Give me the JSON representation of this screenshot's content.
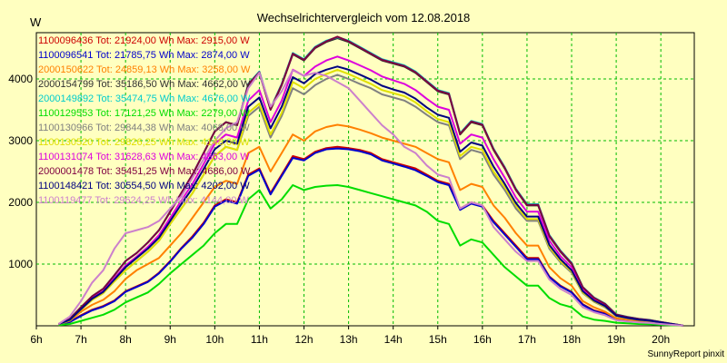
{
  "chart_data": {
    "type": "line",
    "title": "Wechselrichtervergleich vom 12.08.2018",
    "ylabel": "W",
    "footer": "SunnyReport pinxit",
    "x_ticks": [
      "6h",
      "7h",
      "8h",
      "9h",
      "10h",
      "11h",
      "12h",
      "13h",
      "14h",
      "15h",
      "16h",
      "17h",
      "18h",
      "19h",
      "20h"
    ],
    "y_ticks": [
      1000,
      2000,
      3000,
      4000
    ],
    "xlim": [
      6,
      20.75
    ],
    "ylim": [
      0,
      4750
    ],
    "grid": true,
    "legend_position": "top-left, inside plot",
    "x": [
      6.5,
      6.75,
      7,
      7.25,
      7.5,
      7.75,
      8,
      8.25,
      8.5,
      8.75,
      9,
      9.25,
      9.5,
      9.75,
      10,
      10.25,
      10.5,
      10.75,
      11,
      11.25,
      11.5,
      11.75,
      12,
      12.25,
      12.5,
      12.75,
      13,
      13.25,
      13.5,
      13.75,
      14,
      14.25,
      14.5,
      14.75,
      15,
      15.25,
      15.5,
      15.75,
      16,
      16.25,
      16.5,
      16.75,
      17,
      17.25,
      17.5,
      17.75,
      18,
      18.25,
      18.5,
      18.75,
      19,
      19.25,
      19.5,
      19.75,
      20,
      20.25,
      20.5
    ],
    "series": [
      {
        "name": "1100096436 Tot: 21924,00 Wh Max: 2915,00 W",
        "color": "#cc0000",
        "values": [
          20,
          60,
          170,
          260,
          320,
          410,
          560,
          640,
          720,
          860,
          1050,
          1260,
          1450,
          1670,
          1950,
          2050,
          2000,
          2450,
          2550,
          2150,
          2450,
          2750,
          2700,
          2820,
          2880,
          2900,
          2880,
          2850,
          2800,
          2700,
          2650,
          2600,
          2550,
          2450,
          2350,
          2300,
          1900,
          2000,
          1950,
          1700,
          1500,
          1300,
          1100,
          1100,
          800,
          650,
          550,
          350,
          250,
          200,
          100,
          80,
          70,
          60,
          40,
          20,
          5
        ]
      },
      {
        "name": "1100096541 Tot: 21785,75 Wh Max: 2874,00 W",
        "color": "#0000cc",
        "values": [
          20,
          60,
          160,
          250,
          310,
          400,
          550,
          630,
          710,
          850,
          1040,
          1250,
          1430,
          1650,
          1930,
          2030,
          1980,
          2430,
          2530,
          2130,
          2430,
          2720,
          2680,
          2800,
          2860,
          2874,
          2860,
          2830,
          2780,
          2680,
          2630,
          2580,
          2520,
          2430,
          2330,
          2280,
          1880,
          1980,
          1930,
          1680,
          1480,
          1280,
          1080,
          1080,
          790,
          640,
          540,
          340,
          240,
          190,
          95,
          75,
          65,
          55,
          35,
          18,
          5
        ]
      },
      {
        "name": "2000150622 Tot: 24859,13 Wh Max: 3258,00 W",
        "color": "#ff8000",
        "values": [
          25,
          80,
          230,
          340,
          420,
          560,
          760,
          900,
          1000,
          1100,
          1300,
          1500,
          1750,
          2000,
          2250,
          2350,
          2300,
          2800,
          2900,
          2500,
          2800,
          3100,
          3000,
          3150,
          3220,
          3258,
          3230,
          3180,
          3120,
          3050,
          3000,
          2950,
          2900,
          2800,
          2700,
          2650,
          2200,
          2300,
          2250,
          1950,
          1750,
          1500,
          1300,
          1300,
          950,
          770,
          650,
          400,
          300,
          230,
          120,
          100,
          80,
          70,
          50,
          25,
          5
        ]
      },
      {
        "name": "2000154799 Tot: 35186,50 Wh Max: 4662,00 W",
        "color": "#303030",
        "values": [
          30,
          110,
          300,
          480,
          600,
          820,
          1050,
          1180,
          1350,
          1550,
          1850,
          2150,
          2450,
          2800,
          3150,
          3300,
          3250,
          3900,
          4100,
          3500,
          3900,
          4400,
          4300,
          4500,
          4600,
          4662,
          4600,
          4500,
          4400,
          4300,
          4250,
          4200,
          4100,
          3950,
          3800,
          3750,
          3100,
          3300,
          3250,
          2850,
          2550,
          2200,
          1950,
          1950,
          1450,
          1200,
          1000,
          620,
          450,
          350,
          180,
          140,
          110,
          90,
          60,
          30,
          5
        ]
      },
      {
        "name": "2000149892 Tot: 35474,75 Wh Max: 4676,00 W",
        "color": "#00cccc",
        "values": [
          30,
          110,
          300,
          480,
          600,
          820,
          1050,
          1180,
          1350,
          1550,
          1850,
          2150,
          2450,
          2800,
          3150,
          3300,
          3250,
          3920,
          4120,
          3520,
          3920,
          4420,
          4320,
          4520,
          4620,
          4676,
          4620,
          4520,
          4420,
          4320,
          4270,
          4220,
          4120,
          3970,
          3820,
          3770,
          3120,
          3320,
          3270,
          2870,
          2570,
          2220,
          1970,
          1970,
          1470,
          1220,
          1020,
          630,
          460,
          360,
          185,
          145,
          115,
          95,
          62,
          32,
          5
        ]
      },
      {
        "name": "1100129553 Tot: 17121,25 Wh Max: 2279,00 W",
        "color": "#00dd00",
        "values": [
          10,
          30,
          80,
          130,
          180,
          260,
          380,
          460,
          540,
          680,
          850,
          1000,
          1150,
          1300,
          1500,
          1650,
          1650,
          2050,
          2200,
          1900,
          2050,
          2279,
          2200,
          2250,
          2270,
          2279,
          2250,
          2200,
          2150,
          2100,
          2050,
          2000,
          1950,
          1850,
          1700,
          1650,
          1300,
          1400,
          1350,
          1150,
          950,
          800,
          650,
          650,
          450,
          350,
          300,
          150,
          100,
          80,
          50,
          40,
          30,
          25,
          15,
          8,
          3
        ]
      },
      {
        "name": "1100130966 Tot: 29844,38 Wh Max: 4068,00 W",
        "color": "#808080",
        "values": [
          25,
          90,
          260,
          420,
          530,
          720,
          900,
          1050,
          1200,
          1380,
          1650,
          1900,
          2150,
          2450,
          2750,
          2900,
          2850,
          3400,
          3550,
          3050,
          3400,
          3850,
          3750,
          3900,
          4000,
          4068,
          4000,
          3920,
          3850,
          3750,
          3700,
          3650,
          3550,
          3420,
          3300,
          3250,
          2700,
          2850,
          2800,
          2450,
          2200,
          1900,
          1700,
          1700,
          1250,
          1030,
          860,
          530,
          390,
          300,
          155,
          120,
          95,
          78,
          52,
          26,
          5
        ]
      },
      {
        "name": "1100130520 Tot: 29826,25 Wh Max: 4148,00 W",
        "color": "#e0e000",
        "values": [
          25,
          90,
          260,
          420,
          530,
          720,
          900,
          1050,
          1200,
          1380,
          1650,
          1900,
          2150,
          2450,
          2750,
          2900,
          2850,
          3450,
          3600,
          3100,
          3450,
          3950,
          3850,
          4000,
          4080,
          4148,
          4080,
          4000,
          3920,
          3820,
          3770,
          3720,
          3620,
          3480,
          3350,
          3300,
          2750,
          2900,
          2850,
          2500,
          2250,
          1950,
          1730,
          1730,
          1280,
          1050,
          880,
          540,
          400,
          310,
          160,
          125,
          98,
          80,
          54,
          27,
          5
        ]
      },
      {
        "name": "1100131074 Tot: 31628,63 Wh Max: 4363,00 W",
        "color": "#dd00dd",
        "values": [
          28,
          100,
          280,
          450,
          560,
          770,
          980,
          1120,
          1280,
          1470,
          1750,
          2030,
          2300,
          2620,
          2950,
          3100,
          3050,
          3650,
          3820,
          3300,
          3650,
          4150,
          4050,
          4200,
          4300,
          4363,
          4300,
          4220,
          4140,
          4040,
          3980,
          3920,
          3820,
          3680,
          3550,
          3500,
          2950,
          3100,
          3050,
          2700,
          2400,
          2080,
          1850,
          1850,
          1380,
          1130,
          950,
          580,
          430,
          330,
          170,
          130,
          105,
          85,
          57,
          28,
          5
        ]
      },
      {
        "name": "2000001478 Tot: 35451,25 Wh Max: 4686,00 W",
        "color": "#800040",
        "values": [
          30,
          110,
          300,
          480,
          600,
          820,
          1050,
          1180,
          1350,
          1550,
          1850,
          2150,
          2450,
          2800,
          3150,
          3300,
          3250,
          3910,
          4110,
          3510,
          3910,
          4410,
          4310,
          4510,
          4610,
          4686,
          4610,
          4510,
          4410,
          4310,
          4260,
          4210,
          4110,
          3960,
          3810,
          3760,
          3110,
          3310,
          3260,
          2860,
          2560,
          2210,
          1960,
          1960,
          1460,
          1210,
          1010,
          625,
          455,
          355,
          182,
          142,
          112,
          92,
          61,
          31,
          5
        ]
      },
      {
        "name": "1100148421 Tot: 30554,50 Wh Max: 4202,00 W",
        "color": "#000080",
        "values": [
          27,
          95,
          270,
          440,
          550,
          750,
          950,
          1100,
          1250,
          1430,
          1700,
          1970,
          2230,
          2540,
          2860,
          3000,
          2950,
          3550,
          3700,
          3200,
          3550,
          4030,
          3930,
          4080,
          4150,
          4202,
          4150,
          4070,
          3990,
          3890,
          3830,
          3780,
          3680,
          3540,
          3420,
          3370,
          2820,
          2970,
          2920,
          2580,
          2300,
          1990,
          1770,
          1770,
          1310,
          1080,
          900,
          560,
          410,
          320,
          165,
          128,
          100,
          82,
          55,
          28,
          5
        ]
      },
      {
        "name": "1100119477 Tot: 29624,25 Wh Max: 4144,00 W",
        "color": "#cc80cc",
        "values": [
          30,
          150,
          400,
          700,
          900,
          1250,
          1500,
          1550,
          1600,
          1700,
          1900,
          2100,
          2400,
          2700,
          3000,
          3200,
          3300,
          3850,
          4100,
          3550,
          3800,
          4144,
          4050,
          4100,
          4050,
          3950,
          3850,
          3650,
          3450,
          3250,
          3100,
          2900,
          2800,
          2600,
          2450,
          2400,
          1900,
          2000,
          1950,
          1600,
          1400,
          1200,
          1050,
          1050,
          750,
          600,
          500,
          300,
          220,
          170,
          90,
          70,
          55,
          45,
          30,
          15,
          3
        ]
      }
    ]
  }
}
